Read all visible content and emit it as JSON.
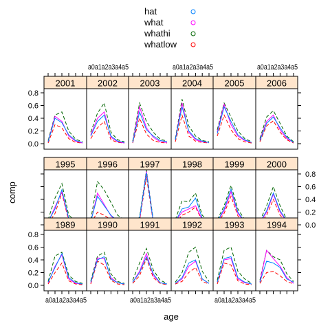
{
  "chart_data": {
    "type": "line",
    "xlabel": "age",
    "ylabel": "comp",
    "categories": [
      "a0",
      "a1",
      "a2",
      "a3",
      "a4",
      "a5"
    ],
    "ylim": [
      0,
      0.8
    ],
    "yticks": [
      "0.0",
      "0.2",
      "0.4",
      "0.6",
      "0.8"
    ],
    "legend": [
      {
        "name": "hat",
        "color": "#0080ff"
      },
      {
        "name": "what",
        "color": "#ff00ff"
      },
      {
        "name": "whathi",
        "color": "#006400"
      },
      {
        "name": "whatlow",
        "color": "#ff0000"
      }
    ],
    "panels": [
      {
        "year": "2001",
        "series": {
          "hat": [
            0.03,
            0.4,
            0.33,
            0.14,
            0.05,
            0.02
          ],
          "what": [
            0.03,
            0.43,
            0.35,
            0.12,
            0.04,
            0.01
          ],
          "whathi": [
            0.05,
            0.45,
            0.5,
            0.2,
            0.07,
            0.03
          ],
          "whatlow": [
            0.01,
            0.3,
            0.25,
            0.08,
            0.02,
            0.01
          ]
        }
      },
      {
        "year": "2002",
        "series": {
          "hat": [
            0.12,
            0.35,
            0.45,
            0.12,
            0.04,
            0.02
          ],
          "what": [
            0.14,
            0.4,
            0.5,
            0.1,
            0.03,
            0.01
          ],
          "whathi": [
            0.18,
            0.48,
            0.64,
            0.18,
            0.06,
            0.03
          ],
          "whatlow": [
            0.08,
            0.25,
            0.35,
            0.06,
            0.02,
            0.01
          ]
        }
      },
      {
        "year": "2003",
        "series": {
          "hat": [
            0.02,
            0.5,
            0.22,
            0.12,
            0.05,
            0.03
          ],
          "what": [
            0.02,
            0.58,
            0.25,
            0.1,
            0.03,
            0.02
          ],
          "whathi": [
            0.04,
            0.64,
            0.35,
            0.18,
            0.07,
            0.04
          ],
          "whatlow": [
            0.01,
            0.4,
            0.15,
            0.05,
            0.02,
            0.01
          ]
        }
      },
      {
        "year": "2004",
        "series": {
          "hat": [
            0.06,
            0.58,
            0.2,
            0.08,
            0.04,
            0.02
          ],
          "what": [
            0.06,
            0.64,
            0.18,
            0.06,
            0.03,
            0.02
          ],
          "whathi": [
            0.08,
            0.7,
            0.28,
            0.12,
            0.05,
            0.03
          ],
          "whatlow": [
            0.03,
            0.45,
            0.12,
            0.04,
            0.02,
            0.01
          ]
        }
      },
      {
        "year": "2005",
        "series": {
          "hat": [
            0.16,
            0.58,
            0.35,
            0.14,
            0.06,
            0.02
          ],
          "what": [
            0.18,
            0.62,
            0.3,
            0.12,
            0.05,
            0.02
          ],
          "whathi": [
            0.22,
            0.64,
            0.42,
            0.2,
            0.08,
            0.03
          ],
          "whatlow": [
            0.12,
            0.45,
            0.22,
            0.08,
            0.03,
            0.01
          ]
        }
      },
      {
        "year": "2006",
        "series": {
          "hat": [
            0.05,
            0.32,
            0.42,
            0.25,
            0.1,
            0.02
          ],
          "what": [
            0.06,
            0.35,
            0.45,
            0.22,
            0.08,
            0.02
          ],
          "whathi": [
            0.08,
            0.42,
            0.52,
            0.32,
            0.12,
            0.03
          ],
          "whatlow": [
            0.03,
            0.28,
            0.36,
            0.18,
            0.06,
            0.01
          ]
        }
      },
      {
        "year": "1995",
        "series": {
          "hat": [
            0.05,
            0.25,
            0.55,
            0.1,
            0.04,
            0.02
          ],
          "what": [
            0.04,
            0.28,
            0.52,
            0.09,
            0.03,
            0.02
          ],
          "whathi": [
            0.08,
            0.42,
            0.65,
            0.15,
            0.06,
            0.03
          ],
          "whatlow": [
            0.02,
            0.18,
            0.5,
            0.06,
            0.02,
            0.01
          ]
        }
      },
      {
        "year": "1996",
        "series": {
          "hat": [
            0.05,
            0.45,
            0.3,
            0.15,
            0.06,
            0.03
          ],
          "what": [
            0.04,
            0.5,
            0.32,
            0.14,
            0.05,
            0.02
          ],
          "whathi": [
            0.08,
            0.68,
            0.55,
            0.35,
            0.15,
            0.08
          ],
          "whatlow": [
            0.02,
            0.2,
            0.15,
            0.08,
            0.03,
            0.01
          ]
        }
      },
      {
        "year": "1997",
        "series": {
          "hat": [
            0.02,
            0.1,
            0.82,
            0.05,
            0.02,
            0.01
          ],
          "what": [
            0.02,
            0.08,
            0.84,
            0.04,
            0.02,
            0.01
          ],
          "whathi": [
            0.03,
            0.12,
            0.86,
            0.07,
            0.03,
            0.02
          ],
          "whatlow": [
            0.01,
            0.06,
            0.76,
            0.03,
            0.01,
            0.01
          ]
        }
      },
      {
        "year": "1998",
        "series": {
          "hat": [
            0.05,
            0.25,
            0.28,
            0.42,
            0.1,
            0.05
          ],
          "what": [
            0.05,
            0.2,
            0.25,
            0.3,
            0.08,
            0.03
          ],
          "whathi": [
            0.08,
            0.38,
            0.36,
            0.5,
            0.15,
            0.06
          ],
          "whatlow": [
            0.02,
            0.15,
            0.2,
            0.28,
            0.06,
            0.02
          ]
        }
      },
      {
        "year": "1999",
        "series": {
          "hat": [
            0.05,
            0.25,
            0.56,
            0.2,
            0.05,
            0.02
          ],
          "what": [
            0.05,
            0.22,
            0.52,
            0.18,
            0.04,
            0.02
          ],
          "whathi": [
            0.08,
            0.3,
            0.62,
            0.25,
            0.08,
            0.03
          ],
          "whatlow": [
            0.03,
            0.18,
            0.45,
            0.14,
            0.03,
            0.01
          ]
        }
      },
      {
        "year": "2000",
        "series": {
          "hat": [
            0.04,
            0.22,
            0.5,
            0.22,
            0.06,
            0.02
          ],
          "what": [
            0.03,
            0.2,
            0.48,
            0.2,
            0.05,
            0.02
          ],
          "whathi": [
            0.06,
            0.3,
            0.6,
            0.3,
            0.08,
            0.03
          ],
          "whatlow": [
            0.02,
            0.15,
            0.4,
            0.15,
            0.04,
            0.01
          ]
        }
      },
      {
        "year": "1989",
        "series": {
          "hat": [
            0.05,
            0.28,
            0.5,
            0.12,
            0.04,
            0.02
          ],
          "what": [
            0.04,
            0.3,
            0.48,
            0.1,
            0.03,
            0.02
          ],
          "whathi": [
            0.06,
            0.46,
            0.52,
            0.16,
            0.06,
            0.03
          ],
          "whatlow": [
            0.02,
            0.2,
            0.35,
            0.07,
            0.02,
            0.01
          ]
        }
      },
      {
        "year": "1990",
        "series": {
          "hat": [
            0.05,
            0.4,
            0.45,
            0.1,
            0.04,
            0.02
          ],
          "what": [
            0.04,
            0.43,
            0.42,
            0.12,
            0.04,
            0.02
          ],
          "whathi": [
            0.07,
            0.46,
            0.52,
            0.18,
            0.06,
            0.03
          ],
          "whatlow": [
            0.02,
            0.38,
            0.32,
            0.08,
            0.02,
            0.01
          ]
        }
      },
      {
        "year": "1991",
        "series": {
          "hat": [
            0.05,
            0.2,
            0.45,
            0.18,
            0.04,
            0.02
          ],
          "what": [
            0.05,
            0.22,
            0.5,
            0.15,
            0.04,
            0.02
          ],
          "whathi": [
            0.08,
            0.35,
            0.58,
            0.24,
            0.08,
            0.03
          ],
          "whatlow": [
            0.03,
            0.15,
            0.42,
            0.12,
            0.03,
            0.01
          ]
        }
      },
      {
        "year": "1992",
        "series": {
          "hat": [
            0.03,
            0.12,
            0.35,
            0.4,
            0.1,
            0.03
          ],
          "what": [
            0.03,
            0.1,
            0.3,
            0.38,
            0.1,
            0.03
          ],
          "whathi": [
            0.05,
            0.2,
            0.52,
            0.6,
            0.22,
            0.06
          ],
          "whatlow": [
            0.02,
            0.06,
            0.2,
            0.28,
            0.06,
            0.02
          ]
        }
      },
      {
        "year": "1993",
        "series": {
          "hat": [
            0.05,
            0.42,
            0.45,
            0.12,
            0.05,
            0.02
          ],
          "what": [
            0.05,
            0.4,
            0.42,
            0.1,
            0.04,
            0.02
          ],
          "whathi": [
            0.08,
            0.55,
            0.6,
            0.22,
            0.1,
            0.03
          ],
          "whatlow": [
            0.02,
            0.35,
            0.32,
            0.07,
            0.02,
            0.01
          ]
        }
      },
      {
        "year": "1994",
        "series": {
          "hat": [
            0.05,
            0.38,
            0.35,
            0.28,
            0.1,
            0.05
          ],
          "what": [
            0.05,
            0.55,
            0.42,
            0.3,
            0.12,
            0.03
          ],
          "whathi": [
            0.08,
            0.55,
            0.45,
            0.4,
            0.18,
            0.06
          ],
          "whatlow": [
            0.03,
            0.2,
            0.22,
            0.15,
            0.06,
            0.02
          ]
        }
      }
    ]
  }
}
